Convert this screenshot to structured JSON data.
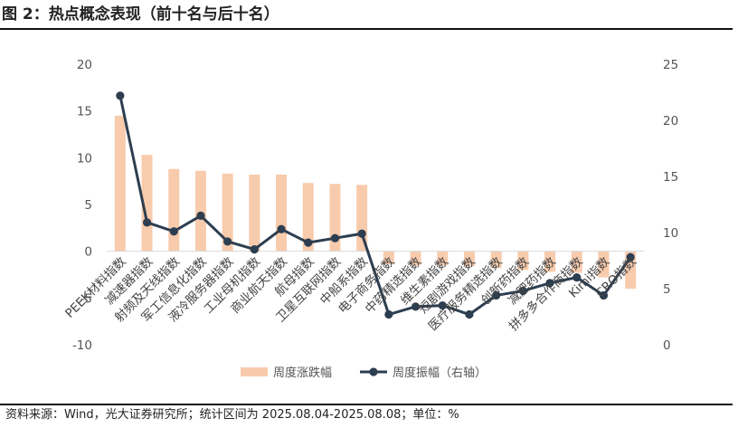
{
  "header": {
    "title": "图 2：热点概念表现（前十名与后十名）"
  },
  "footer": {
    "source": "资料来源：Wind，光大证券研究所；统计区间为 2025.08.04-2025.08.08；单位：%"
  },
  "chart_data": {
    "type": "bar+line",
    "categories": [
      "PEEK材料指数",
      "减速器指数",
      "射频及天线指数",
      "军工信息化指数",
      "液冷服务器指数",
      "工业母机指数",
      "商业航天指数",
      "航母指数",
      "卫星互联网指数",
      "中船系指数",
      "电子商务指数",
      "中药精选指数",
      "维生素指数",
      "短剧游戏指数",
      "医疗服务精选指数",
      "创新药指数",
      "减肥药指数",
      "拼多多合作商指数",
      "Kimi指数",
      "CRO指数"
    ],
    "series": [
      {
        "name": "周度涨跌幅",
        "axis": "left",
        "color": "#f8cbad",
        "values": [
          14.5,
          10.3,
          8.8,
          8.6,
          8.3,
          8.2,
          8.2,
          7.3,
          7.2,
          7.1,
          -1.4,
          -1.5,
          -1.5,
          -1.6,
          -1.8,
          -2.0,
          -2.2,
          -2.3,
          -2.8,
          -4.0
        ]
      },
      {
        "name": "周度振幅（右轴）",
        "axis": "right",
        "color": "#2d3e50",
        "values": [
          22.2,
          10.9,
          10.1,
          11.5,
          9.2,
          8.5,
          10.3,
          9.1,
          9.5,
          9.9,
          2.7,
          3.4,
          3.5,
          2.7,
          4.4,
          4.8,
          5.5,
          6.0,
          4.4,
          7.8
        ]
      }
    ],
    "yleft": {
      "min": -10,
      "max": 20,
      "ticks": [
        -10,
        -5,
        0,
        5,
        10,
        15,
        20
      ]
    },
    "yright": {
      "min": 0,
      "max": 25,
      "ticks": [
        0,
        5,
        10,
        15,
        20,
        25
      ]
    },
    "legend": "bottom"
  }
}
